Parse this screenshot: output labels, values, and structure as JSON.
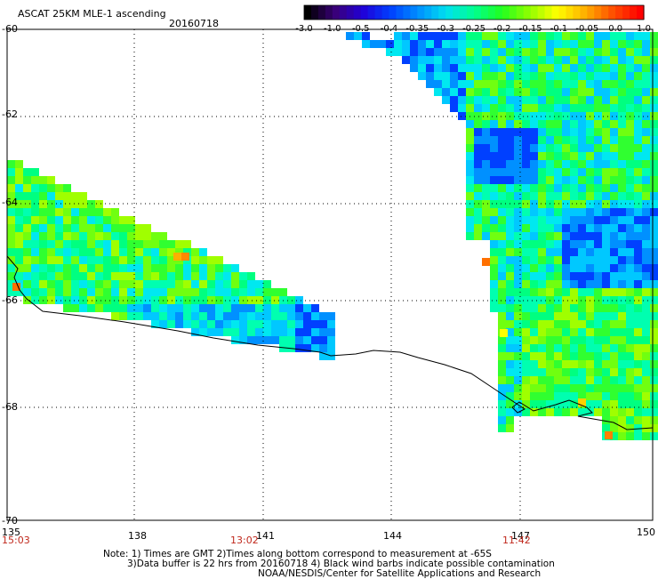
{
  "header": {
    "title": "ASCAT 25KM MLE-1 ascending",
    "date": "20160718"
  },
  "colorbar": {
    "labels": [
      "-3.0",
      "-1.0",
      "-0.5",
      "-0.4",
      "-0.35",
      "-0.3",
      "-0.25",
      "-0.2",
      "-0.15",
      "-0.1",
      "-0.05",
      "0.0",
      "1.0"
    ],
    "colors": [
      "#000000",
      "#3a0078",
      "#2000d8",
      "#0040ff",
      "#0090ff",
      "#00e0f0",
      "#00ff90",
      "#20ff20",
      "#90ff00",
      "#ffff00",
      "#ffb000",
      "#ff5000",
      "#ff0000"
    ]
  },
  "map": {
    "lat_labels": [
      "-60",
      "-62",
      "-64",
      "-66",
      "-68",
      "-70"
    ],
    "lon_labels": [
      "135",
      "138",
      "141",
      "144",
      "147",
      "150"
    ],
    "time_labels": [
      "15:03",
      "13:02",
      "11:42"
    ]
  },
  "notes": {
    "line1": "Note: 1) Times are GMT 2)Times along bottom correspond to measurement at -65S",
    "line2": "3)Data buffer is 22 hrs from 20160718 4) Black wind barbs indicate possible contamination",
    "line3": "NOAA/NESDIS/Center for Satellite Applications and Research"
  }
}
